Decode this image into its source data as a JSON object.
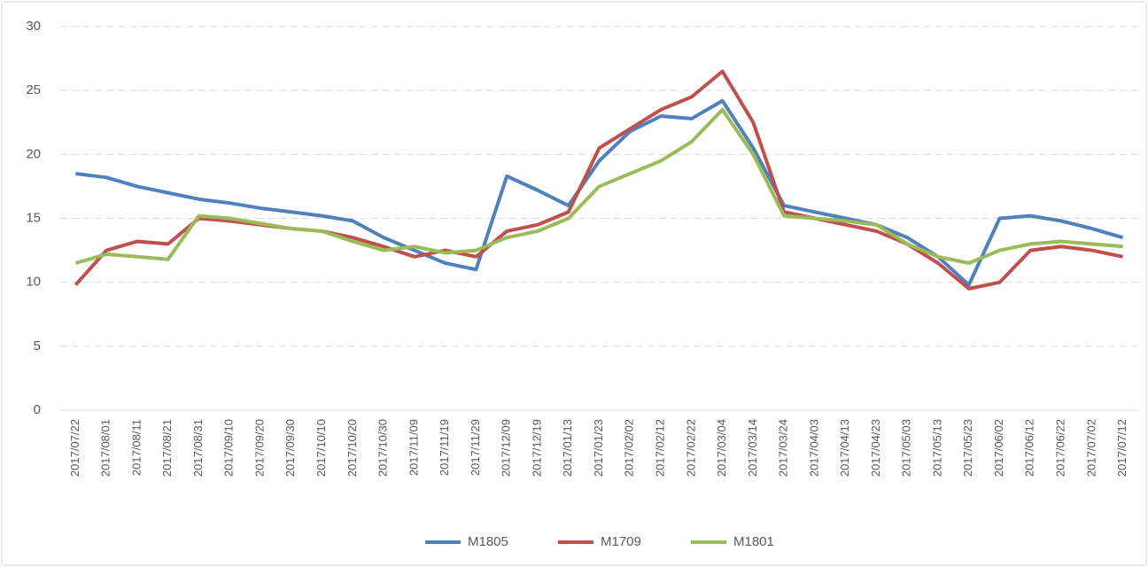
{
  "chart_data": {
    "type": "line",
    "categories": [
      "2017/07/22",
      "2017/08/01",
      "2017/08/11",
      "2017/08/21",
      "2017/08/31",
      "2017/09/10",
      "2017/09/20",
      "2017/09/30",
      "2017/10/10",
      "2017/10/20",
      "2017/10/30",
      "2017/11/09",
      "2017/11/19",
      "2017/11/29",
      "2017/12/09",
      "2017/12/19",
      "2017/01/13",
      "2017/01/23",
      "2017/02/02",
      "2017/02/12",
      "2017/02/22",
      "2017/03/04",
      "2017/03/14",
      "2017/03/24",
      "2017/04/03",
      "2017/04/13",
      "2017/04/23",
      "2017/05/03",
      "2017/05/13",
      "2017/05/23",
      "2017/06/02",
      "2017/06/12",
      "2017/06/22",
      "2017/07/02",
      "2017/07/12"
    ],
    "series": [
      {
        "name": "M1805",
        "color": "#4f81bd",
        "values": [
          18.5,
          18.2,
          17.5,
          17.0,
          16.5,
          16.2,
          15.8,
          15.5,
          15.2,
          14.8,
          13.5,
          12.5,
          11.5,
          11.0,
          18.3,
          17.2,
          16.0,
          19.5,
          21.8,
          23.0,
          22.8,
          24.2,
          20.5,
          16.0,
          15.5,
          15.0,
          14.5,
          13.5,
          12.0,
          9.8,
          15.0,
          15.2,
          14.8,
          14.2,
          13.5
        ]
      },
      {
        "name": "M1709",
        "color": "#c0504d",
        "values": [
          9.8,
          12.5,
          13.2,
          13.0,
          15.0,
          14.8,
          14.5,
          14.2,
          14.0,
          13.5,
          12.8,
          12.0,
          12.5,
          12.0,
          14.0,
          14.5,
          15.5,
          20.5,
          22.0,
          23.5,
          24.5,
          26.5,
          22.5,
          15.5,
          15.0,
          14.5,
          14.0,
          13.0,
          11.5,
          9.5,
          10.0,
          12.5,
          12.8,
          12.5,
          12.0
        ]
      },
      {
        "name": "M1801",
        "color": "#9bbb59",
        "values": [
          11.5,
          12.2,
          12.0,
          11.8,
          15.2,
          15.0,
          14.6,
          14.2,
          14.0,
          13.2,
          12.5,
          12.8,
          12.3,
          12.5,
          13.5,
          14.0,
          15.0,
          17.5,
          18.5,
          19.5,
          21.0,
          23.5,
          20.0,
          15.2,
          15.0,
          14.8,
          14.5,
          13.0,
          12.0,
          11.5,
          12.5,
          13.0,
          13.2,
          13.0,
          12.8
        ]
      }
    ],
    "ylim": [
      0,
      30
    ],
    "yticks": [
      0,
      5,
      10,
      15,
      20,
      25,
      30
    ],
    "grid": true,
    "legend": "bottom"
  }
}
